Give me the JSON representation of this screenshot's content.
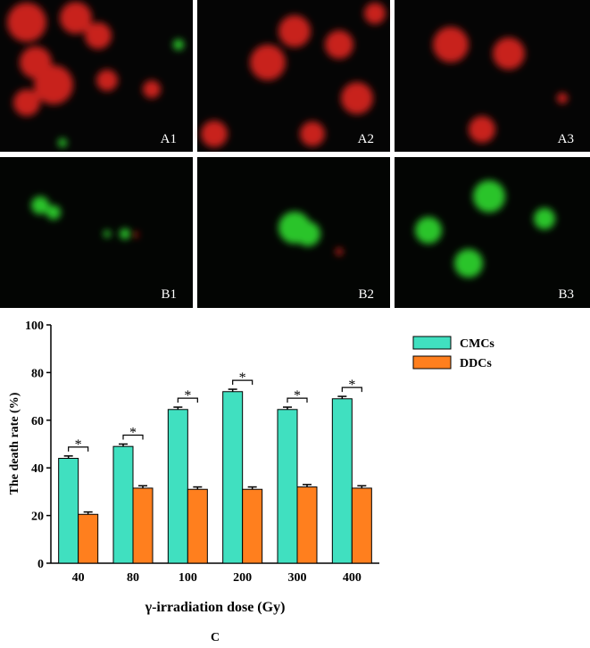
{
  "panels": [
    {
      "label": "A1"
    },
    {
      "label": "A2"
    },
    {
      "label": "A3"
    },
    {
      "label": "B1"
    },
    {
      "label": "B2"
    },
    {
      "label": "B3"
    }
  ],
  "chart_data": {
    "type": "bar",
    "ylabel": "The death rate (%)",
    "xlabel": "γ-irradiation dose (Gy)",
    "categories": [
      "40",
      "80",
      "100",
      "200",
      "300",
      "400"
    ],
    "series": [
      {
        "name": "CMCs",
        "color": "#40e0c0",
        "values": [
          44,
          49,
          64.5,
          72,
          64.5,
          69
        ],
        "errors": [
          1,
          1,
          1,
          1,
          1,
          1
        ]
      },
      {
        "name": "DDCs",
        "color": "#ff7f1e",
        "values": [
          20.5,
          31.5,
          31,
          31,
          32,
          31.5
        ],
        "errors": [
          1,
          1,
          1,
          1,
          1,
          1
        ]
      }
    ],
    "significance": [
      "*",
      "*",
      "*",
      "*",
      "*",
      "*"
    ],
    "ylim": [
      0,
      100
    ],
    "yticks": [
      0,
      20,
      40,
      60,
      80,
      100
    ],
    "legend": "upper right"
  },
  "caption": "C"
}
